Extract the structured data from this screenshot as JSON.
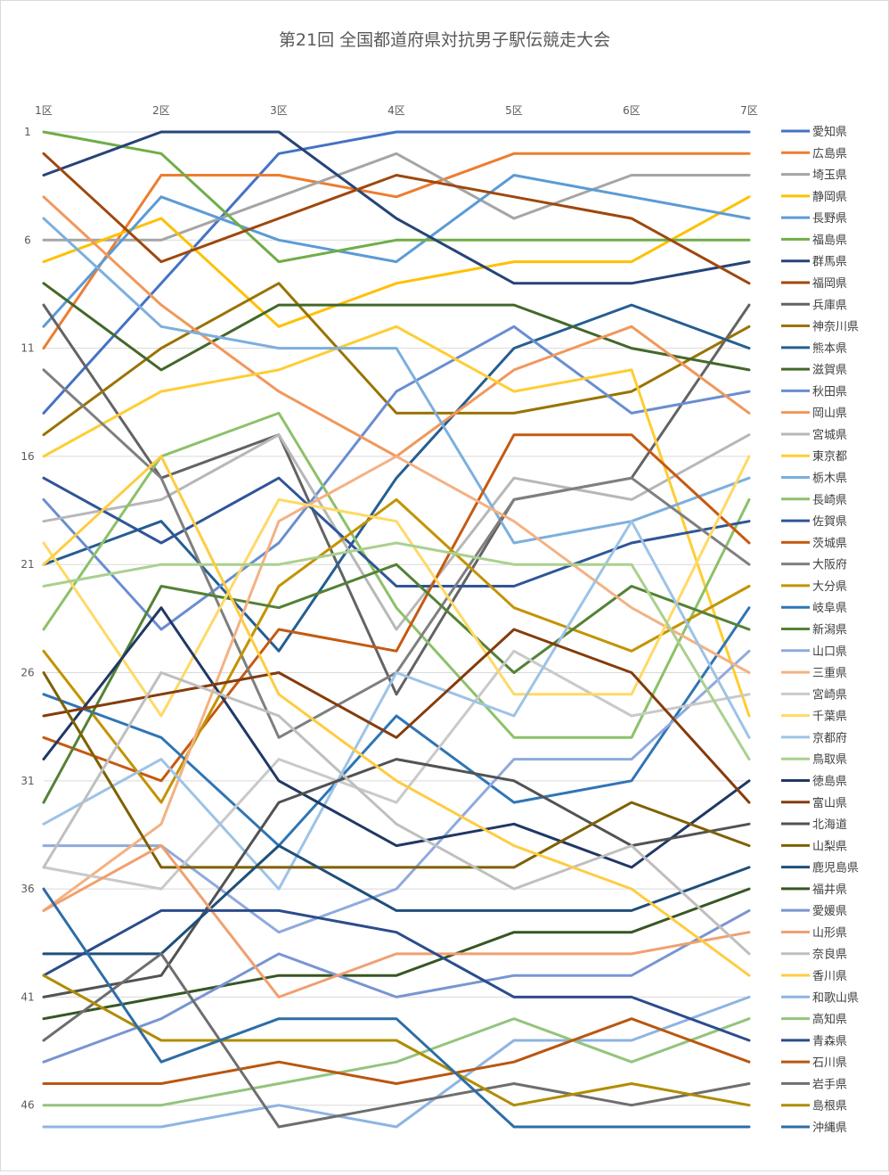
{
  "chart_data": {
    "type": "line",
    "title": "第21回 全国都道府県対抗男子駅伝競走大会",
    "x": [
      "1区",
      "2区",
      "3区",
      "4区",
      "5区",
      "6区",
      "7区"
    ],
    "y_ticks": [
      1,
      6,
      11,
      16,
      21,
      26,
      31,
      36,
      41,
      46
    ],
    "ylim": [
      1,
      47
    ],
    "y_inverted": true,
    "grid": true,
    "legend_position": "right",
    "series": [
      {
        "name": "愛知県",
        "color": "#4472C4",
        "values": [
          14,
          8,
          2,
          1,
          1,
          1,
          1
        ]
      },
      {
        "name": "広島県",
        "color": "#ED7D31",
        "values": [
          11,
          3,
          3,
          4,
          2,
          2,
          2
        ]
      },
      {
        "name": "埼玉県",
        "color": "#A5A5A5",
        "values": [
          6,
          6,
          4,
          2,
          5,
          3,
          3
        ]
      },
      {
        "name": "静岡県",
        "color": "#FFC000",
        "values": [
          7,
          5,
          10,
          8,
          7,
          7,
          4
        ]
      },
      {
        "name": "長野県",
        "color": "#5B9BD5",
        "values": [
          10,
          4,
          6,
          7,
          3,
          4,
          5
        ]
      },
      {
        "name": "福島県",
        "color": "#70AD47",
        "values": [
          1,
          2,
          7,
          6,
          6,
          6,
          6
        ]
      },
      {
        "name": "群馬県",
        "color": "#264478",
        "values": [
          3,
          1,
          1,
          5,
          8,
          8,
          7
        ]
      },
      {
        "name": "福岡県",
        "color": "#9E480E",
        "values": [
          2,
          7,
          5,
          3,
          4,
          5,
          8
        ]
      },
      {
        "name": "兵庫県",
        "color": "#636363",
        "values": [
          9,
          17,
          15,
          27,
          18,
          17,
          9
        ]
      },
      {
        "name": "神奈川県",
        "color": "#997300",
        "values": [
          15,
          11,
          8,
          14,
          14,
          13,
          10
        ]
      },
      {
        "name": "熊本県",
        "color": "#255E91",
        "values": [
          21,
          19,
          25,
          17,
          11,
          9,
          11
        ]
      },
      {
        "name": "滋賀県",
        "color": "#43682B",
        "values": [
          8,
          12,
          9,
          9,
          9,
          11,
          12
        ]
      },
      {
        "name": "秋田県",
        "color": "#698ED0",
        "values": [
          18,
          24,
          20,
          13,
          10,
          14,
          13
        ]
      },
      {
        "name": "岡山県",
        "color": "#F1975A",
        "values": [
          4,
          9,
          13,
          16,
          12,
          10,
          14
        ]
      },
      {
        "name": "宮城県",
        "color": "#B7B7B7",
        "values": [
          19,
          18,
          15,
          24,
          17,
          18,
          15
        ]
      },
      {
        "name": "東京都",
        "color": "#FFCD33",
        "values": [
          16,
          13,
          12,
          10,
          13,
          12,
          28
        ]
      },
      {
        "name": "栃木県",
        "color": "#7CAFDD",
        "values": [
          5,
          10,
          11,
          11,
          20,
          19,
          17
        ]
      },
      {
        "name": "長崎県",
        "color": "#8CC168",
        "values": [
          24,
          16,
          14,
          23,
          29,
          29,
          18
        ]
      },
      {
        "name": "佐賀県",
        "color": "#2F5597",
        "values": [
          17,
          20,
          17,
          22,
          22,
          20,
          19
        ]
      },
      {
        "name": "茨城県",
        "color": "#C55A11",
        "values": [
          29,
          31,
          24,
          25,
          15,
          15,
          20
        ]
      },
      {
        "name": "大阪府",
        "color": "#7F7F7F",
        "values": [
          12,
          17,
          29,
          26,
          18,
          17,
          21
        ]
      },
      {
        "name": "大分県",
        "color": "#C39300",
        "values": [
          25,
          32,
          22,
          18,
          23,
          25,
          22
        ]
      },
      {
        "name": "岐阜県",
        "color": "#2E75B6",
        "values": [
          27,
          29,
          34,
          28,
          32,
          31,
          23
        ]
      },
      {
        "name": "新潟県",
        "color": "#548235",
        "values": [
          32,
          22,
          23,
          21,
          26,
          22,
          24
        ]
      },
      {
        "name": "山口県",
        "color": "#8FAADC",
        "values": [
          34,
          34,
          38,
          36,
          30,
          30,
          25
        ]
      },
      {
        "name": "三重県",
        "color": "#F4B183",
        "values": [
          37,
          33,
          19,
          16,
          19,
          23,
          26
        ]
      },
      {
        "name": "宮崎県",
        "color": "#C9C9C9",
        "values": [
          35,
          36,
          30,
          32,
          25,
          28,
          27
        ]
      },
      {
        "name": "千葉県",
        "color": "#FFD966",
        "values": [
          20,
          28,
          18,
          19,
          27,
          27,
          16
        ]
      },
      {
        "name": "京都府",
        "color": "#9DC3E6",
        "values": [
          33,
          30,
          36,
          26,
          28,
          19,
          29
        ]
      },
      {
        "name": "鳥取県",
        "color": "#A9D18E",
        "values": [
          22,
          21,
          21,
          20,
          21,
          21,
          30
        ]
      },
      {
        "name": "徳島県",
        "color": "#203864",
        "values": [
          30,
          23,
          31,
          34,
          33,
          35,
          31
        ]
      },
      {
        "name": "富山県",
        "color": "#843C0C",
        "values": [
          28,
          27,
          26,
          29,
          24,
          26,
          32
        ]
      },
      {
        "name": "北海道",
        "color": "#525252",
        "values": [
          41,
          40,
          32,
          30,
          31,
          34,
          33
        ]
      },
      {
        "name": "山梨県",
        "color": "#7F6000",
        "values": [
          26,
          35,
          35,
          35,
          35,
          32,
          34
        ]
      },
      {
        "name": "鹿児島県",
        "color": "#1F4E79",
        "values": [
          39,
          39,
          34,
          37,
          37,
          37,
          35
        ]
      },
      {
        "name": "福井県",
        "color": "#375623",
        "values": [
          42,
          41,
          40,
          40,
          38,
          38,
          36
        ]
      },
      {
        "name": "愛媛県",
        "color": "#7895D1",
        "values": [
          44,
          42,
          39,
          41,
          40,
          40,
          37
        ]
      },
      {
        "name": "山形県",
        "color": "#F0A070",
        "values": [
          37,
          34,
          41,
          39,
          39,
          39,
          38
        ]
      },
      {
        "name": "奈良県",
        "color": "#BFBFBF",
        "values": [
          35,
          26,
          28,
          33,
          36,
          34,
          39
        ]
      },
      {
        "name": "香川県",
        "color": "#FFCC40",
        "values": [
          21,
          16,
          27,
          31,
          34,
          36,
          40
        ]
      },
      {
        "name": "和歌山県",
        "color": "#8DB4E2",
        "values": [
          47,
          47,
          46,
          47,
          43,
          43,
          41
        ]
      },
      {
        "name": "高知県",
        "color": "#93C47D",
        "values": [
          46,
          46,
          45,
          44,
          42,
          44,
          42
        ]
      },
      {
        "name": "青森県",
        "color": "#2B4C8C",
        "values": [
          40,
          37,
          37,
          38,
          41,
          41,
          43
        ]
      },
      {
        "name": "石川県",
        "color": "#B9560F",
        "values": [
          45,
          45,
          44,
          45,
          44,
          42,
          44
        ]
      },
      {
        "name": "岩手県",
        "color": "#6E6E6E",
        "values": [
          43,
          39,
          47,
          46,
          45,
          46,
          45
        ]
      },
      {
        "name": "島根県",
        "color": "#B08C00",
        "values": [
          40,
          43,
          43,
          43,
          46,
          45,
          46
        ]
      },
      {
        "name": "沖縄県",
        "color": "#2D6DA6",
        "values": [
          36,
          44,
          42,
          42,
          47,
          47,
          47
        ]
      }
    ]
  }
}
